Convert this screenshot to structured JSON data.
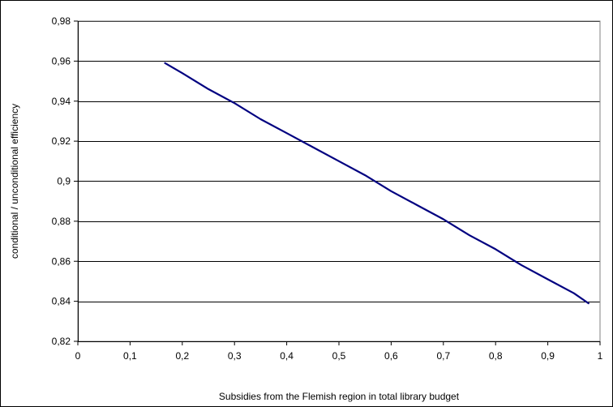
{
  "chart_data": {
    "type": "line",
    "title": "",
    "xlabel": "Subsidies from the Flemish region in total library budget",
    "ylabel": "conditional / unconditional efficiency",
    "xlim": [
      0,
      1
    ],
    "ylim": [
      0.82,
      0.98
    ],
    "x_ticks": [
      0,
      0.1,
      0.2,
      0.3,
      0.4,
      0.5,
      0.6,
      0.7,
      0.8,
      0.9,
      1
    ],
    "x_tick_labels": [
      "0",
      "0,1",
      "0,2",
      "0,3",
      "0,4",
      "0,5",
      "0,6",
      "0,7",
      "0,8",
      "0,9",
      "1"
    ],
    "y_ticks": [
      0.82,
      0.84,
      0.86,
      0.88,
      0.9,
      0.92,
      0.94,
      0.96,
      0.98
    ],
    "y_tick_labels": [
      "0,82",
      "0,84",
      "0,86",
      "0,88",
      "0,9",
      "0,92",
      "0,94",
      "0,96",
      "0,98"
    ],
    "grid": "horizontal",
    "legend": "none",
    "series": [
      {
        "color": "#000080",
        "x": [
          0.167,
          0.2,
          0.25,
          0.3,
          0.35,
          0.4,
          0.45,
          0.5,
          0.55,
          0.6,
          0.65,
          0.7,
          0.75,
          0.8,
          0.85,
          0.9,
          0.95,
          0.978
        ],
        "y": [
          0.959,
          0.954,
          0.946,
          0.939,
          0.931,
          0.924,
          0.917,
          0.91,
          0.903,
          0.895,
          0.888,
          0.881,
          0.873,
          0.866,
          0.858,
          0.851,
          0.844,
          0.839
        ]
      }
    ]
  }
}
